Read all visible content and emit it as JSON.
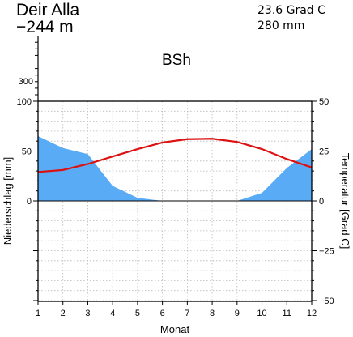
{
  "header": {
    "station": "Deir Alla",
    "elevation": "−244 m",
    "mean_temp": "23.6 Grad C",
    "annual_precip": "280 mm",
    "climate_class": "BSh"
  },
  "chart_data": {
    "type": "area",
    "xlabel": "Monat",
    "y_left_label": "Niederschlag [mm]",
    "y_right_label": "Temperatur [Grad C]",
    "x_ticks": [
      "1",
      "2",
      "3",
      "4",
      "5",
      "6",
      "7",
      "8",
      "9",
      "10",
      "11",
      "12"
    ],
    "y_left_ticks": [
      "0",
      "50",
      "100",
      "300"
    ],
    "y_right_ticks": [
      "−50",
      "−25",
      "0",
      "25",
      "50"
    ],
    "precip_ylim": [
      -100,
      100
    ],
    "temp_ylim": [
      -50,
      50
    ],
    "grid": true,
    "series": [
      {
        "name": "Niederschlag",
        "unit": "mm",
        "color": "#5aabf5",
        "values": [
          65,
          53,
          47,
          15,
          3,
          0,
          0,
          0,
          0,
          8,
          33,
          52
        ]
      },
      {
        "name": "Temperatur",
        "unit": "Grad C",
        "color": "#dd1111",
        "values": [
          14.5,
          15.5,
          18.5,
          22.3,
          26.0,
          29.3,
          31.0,
          31.2,
          29.6,
          26.0,
          21.0,
          16.8
        ]
      }
    ]
  }
}
